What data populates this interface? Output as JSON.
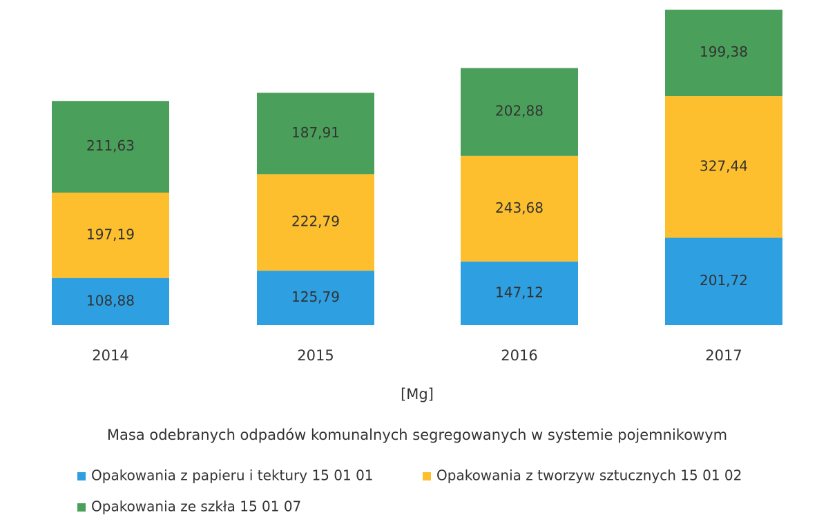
{
  "chart_data": {
    "type": "stacked_bar",
    "title": "Masa odebranych odpadów komunalnych segregowanych w systemie pojemnikowym",
    "unit_label": "[Mg]",
    "categories": [
      "2014",
      "2015",
      "2016",
      "2017"
    ],
    "series": [
      {
        "name": "Opakowania z papieru i tektury 15 01 01",
        "color": "#2e9fe0",
        "values": [
          108.88,
          125.79,
          147.12,
          201.72
        ],
        "value_labels": [
          "108,88",
          "125,79",
          "147,12",
          "201,72"
        ]
      },
      {
        "name": "Opakowania z tworzyw sztucznych 15 01 02",
        "color": "#fdbf2d",
        "values": [
          197.19,
          222.79,
          243.68,
          327.44
        ],
        "value_labels": [
          "197,19",
          "222,79",
          "243,68",
          "327,44"
        ]
      },
      {
        "name": "Opakowania ze szkła 15 01 07",
        "color": "#4aa05a",
        "values": [
          211.63,
          187.91,
          202.88,
          199.38
        ],
        "value_labels": [
          "211,63",
          "187,91",
          "202,88",
          "199,38"
        ]
      }
    ],
    "legend": "bottom"
  }
}
